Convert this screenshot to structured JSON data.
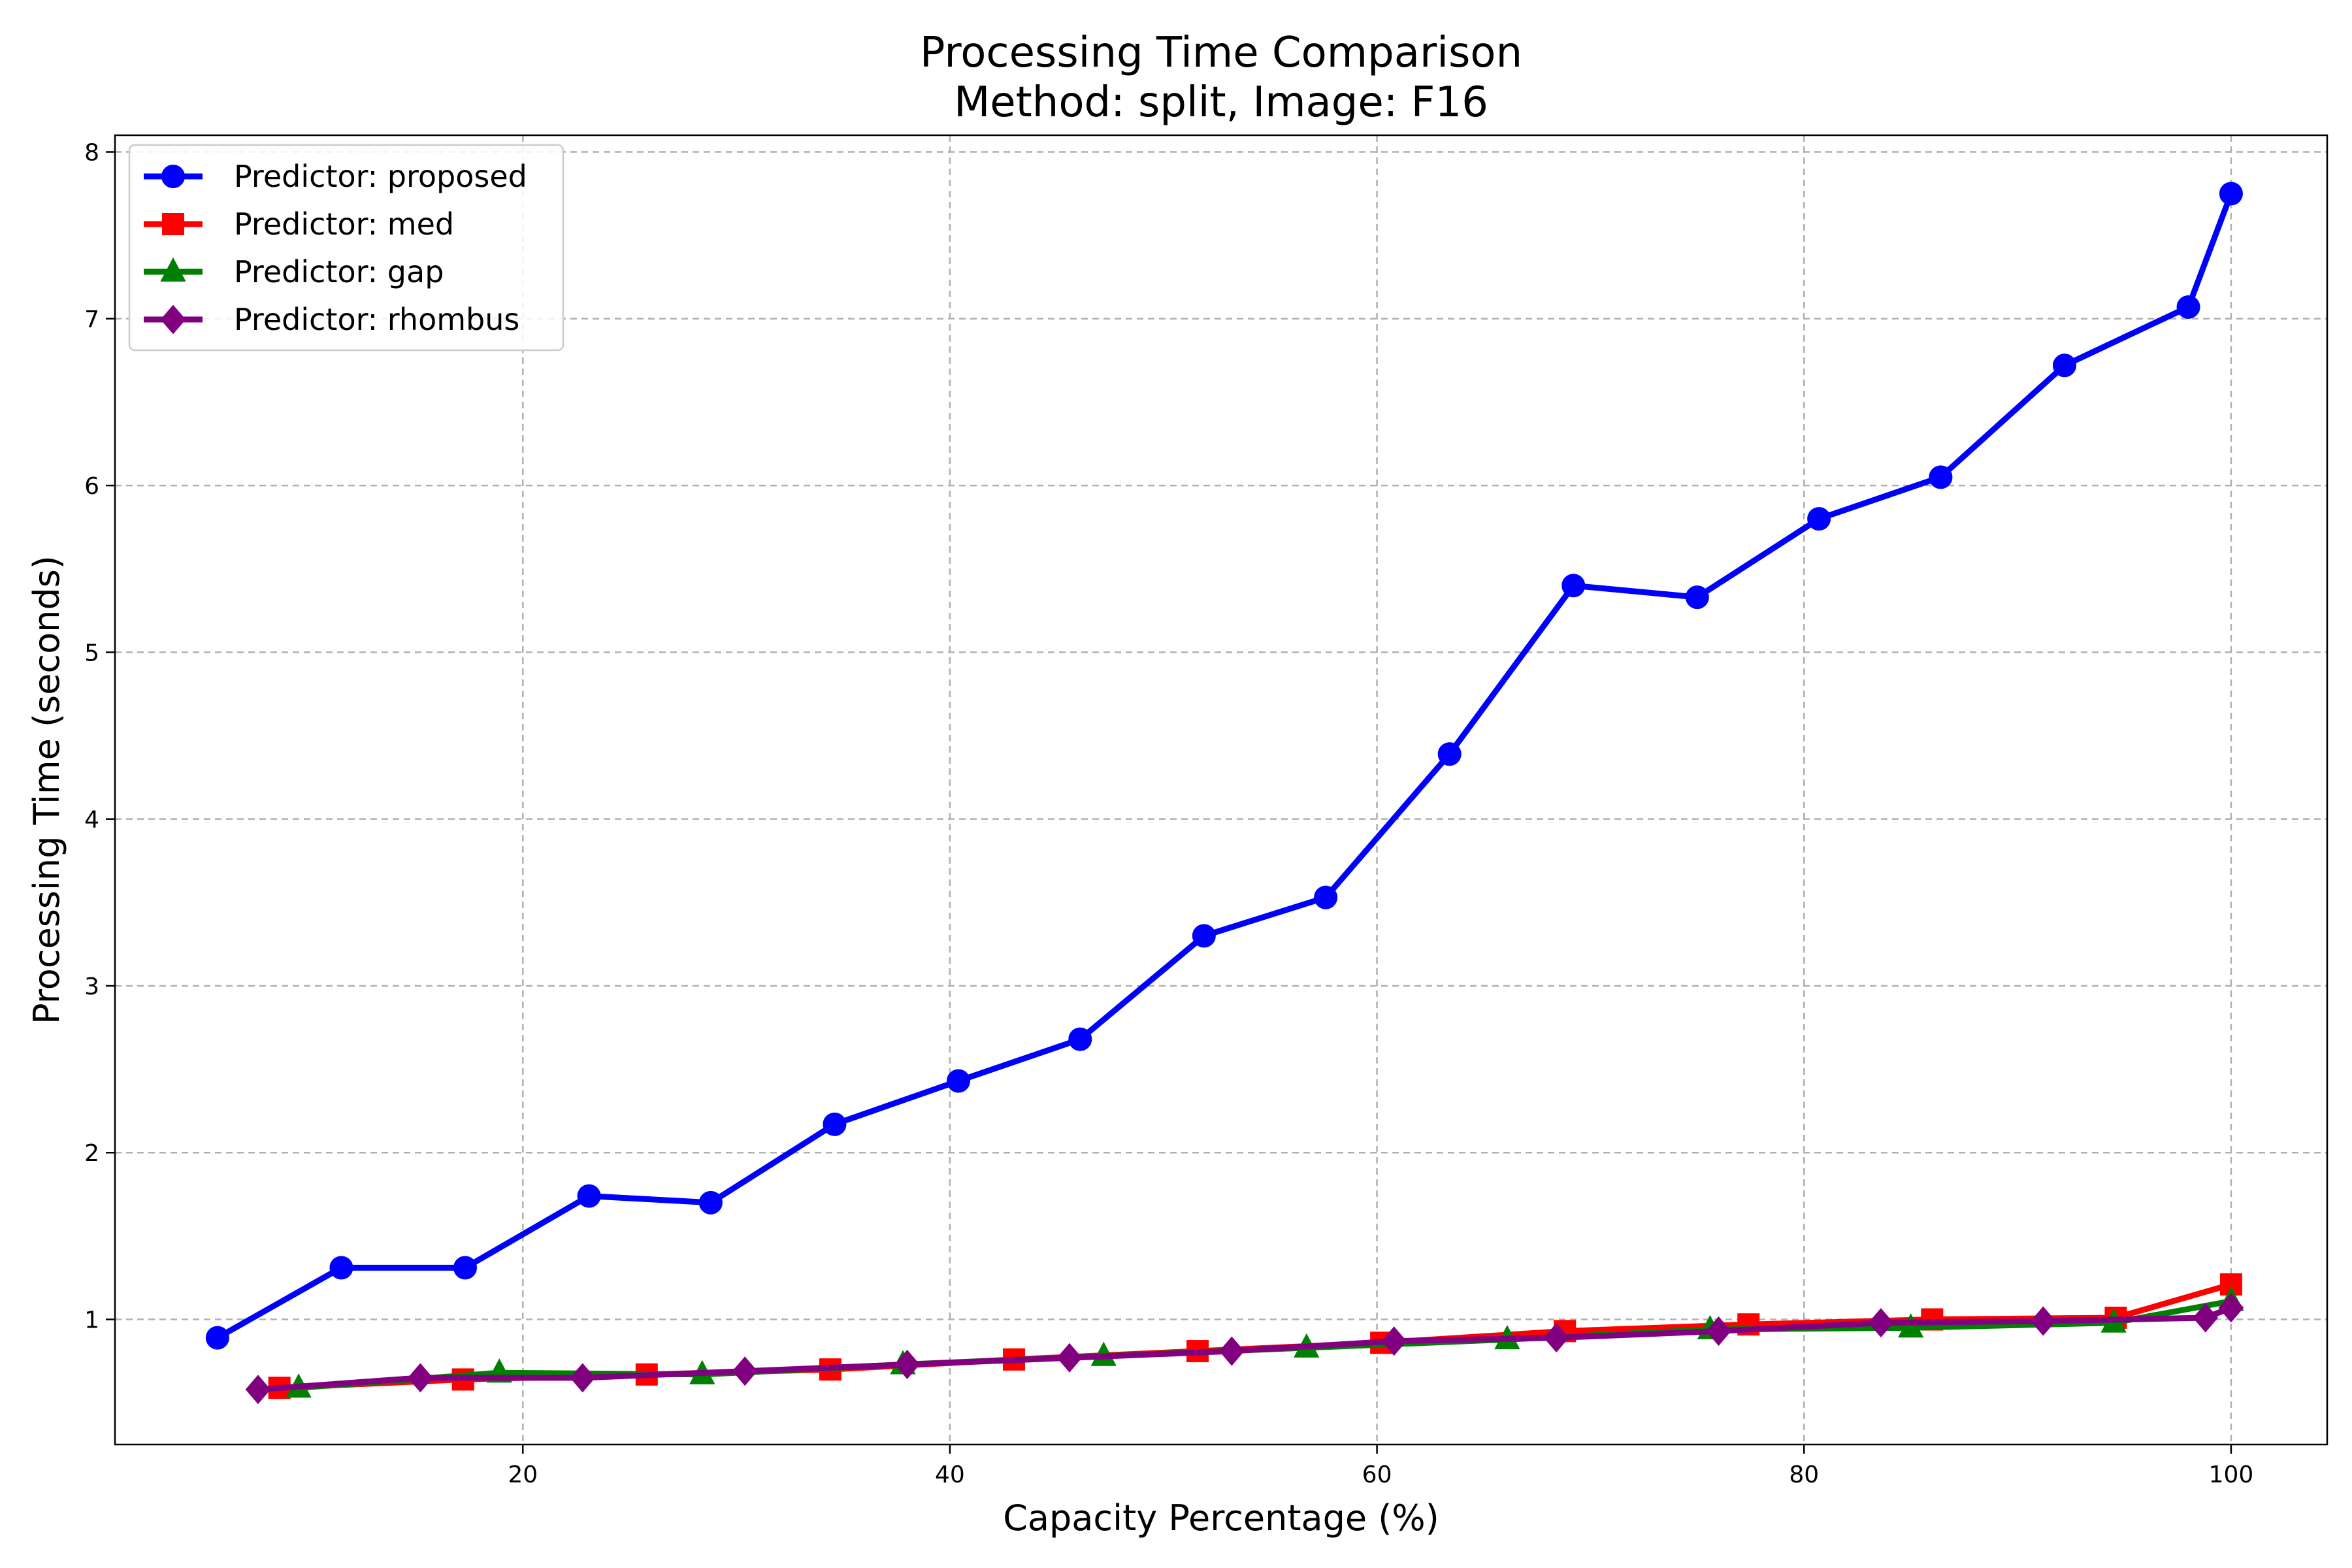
{
  "chart_data": {
    "type": "line",
    "title": "Processing Time Comparison",
    "subtitle": "Method: split, Image: F16",
    "xlabel": "Capacity Percentage (%)",
    "ylabel": "Processing Time (seconds)",
    "xlim": [
      0.9,
      104.5
    ],
    "ylim": [
      0.25,
      8.1
    ],
    "xticks": [
      20,
      40,
      60,
      80,
      100
    ],
    "yticks": [
      1,
      2,
      3,
      4,
      5,
      6,
      7,
      8
    ],
    "grid": true,
    "legend_position": "upper-left",
    "series": [
      {
        "name": "Predictor: proposed",
        "color": "#0000ff",
        "marker": "circle",
        "x": [
          5.7,
          11.5,
          17.3,
          23.1,
          28.8,
          34.6,
          40.4,
          46.1,
          51.9,
          57.6,
          63.4,
          69.2,
          75.0,
          80.7,
          86.4,
          92.2,
          98.0,
          100.0
        ],
        "y": [
          0.89,
          1.31,
          1.31,
          1.74,
          1.7,
          2.17,
          2.43,
          2.68,
          3.3,
          3.53,
          4.39,
          5.4,
          5.33,
          5.8,
          6.05,
          6.72,
          7.07,
          7.75
        ]
      },
      {
        "name": "Predictor: med",
        "color": "#ff0000",
        "marker": "square",
        "x": [
          8.6,
          17.2,
          25.8,
          34.4,
          43.0,
          51.6,
          60.2,
          68.8,
          77.4,
          86.0,
          94.6,
          100.0
        ],
        "y": [
          0.59,
          0.64,
          0.67,
          0.7,
          0.76,
          0.81,
          0.86,
          0.93,
          0.97,
          1.0,
          1.01,
          1.21
        ]
      },
      {
        "name": "Predictor: gap",
        "color": "#008000",
        "marker": "triangle",
        "x": [
          9.5,
          18.9,
          28.4,
          37.8,
          47.2,
          56.7,
          66.1,
          75.6,
          85.0,
          94.5,
          100.0
        ],
        "y": [
          0.59,
          0.68,
          0.67,
          0.73,
          0.78,
          0.83,
          0.88,
          0.94,
          0.95,
          0.98,
          1.11
        ]
      },
      {
        "name": "Predictor: rhombus",
        "color": "#800080",
        "marker": "diamond",
        "x": [
          7.6,
          15.2,
          22.8,
          30.4,
          38.0,
          45.6,
          53.2,
          60.8,
          68.4,
          76.0,
          83.6,
          91.2,
          98.8,
          100.0
        ],
        "y": [
          0.58,
          0.65,
          0.65,
          0.69,
          0.73,
          0.77,
          0.81,
          0.87,
          0.89,
          0.93,
          0.98,
          0.99,
          1.01,
          1.07
        ]
      }
    ]
  }
}
